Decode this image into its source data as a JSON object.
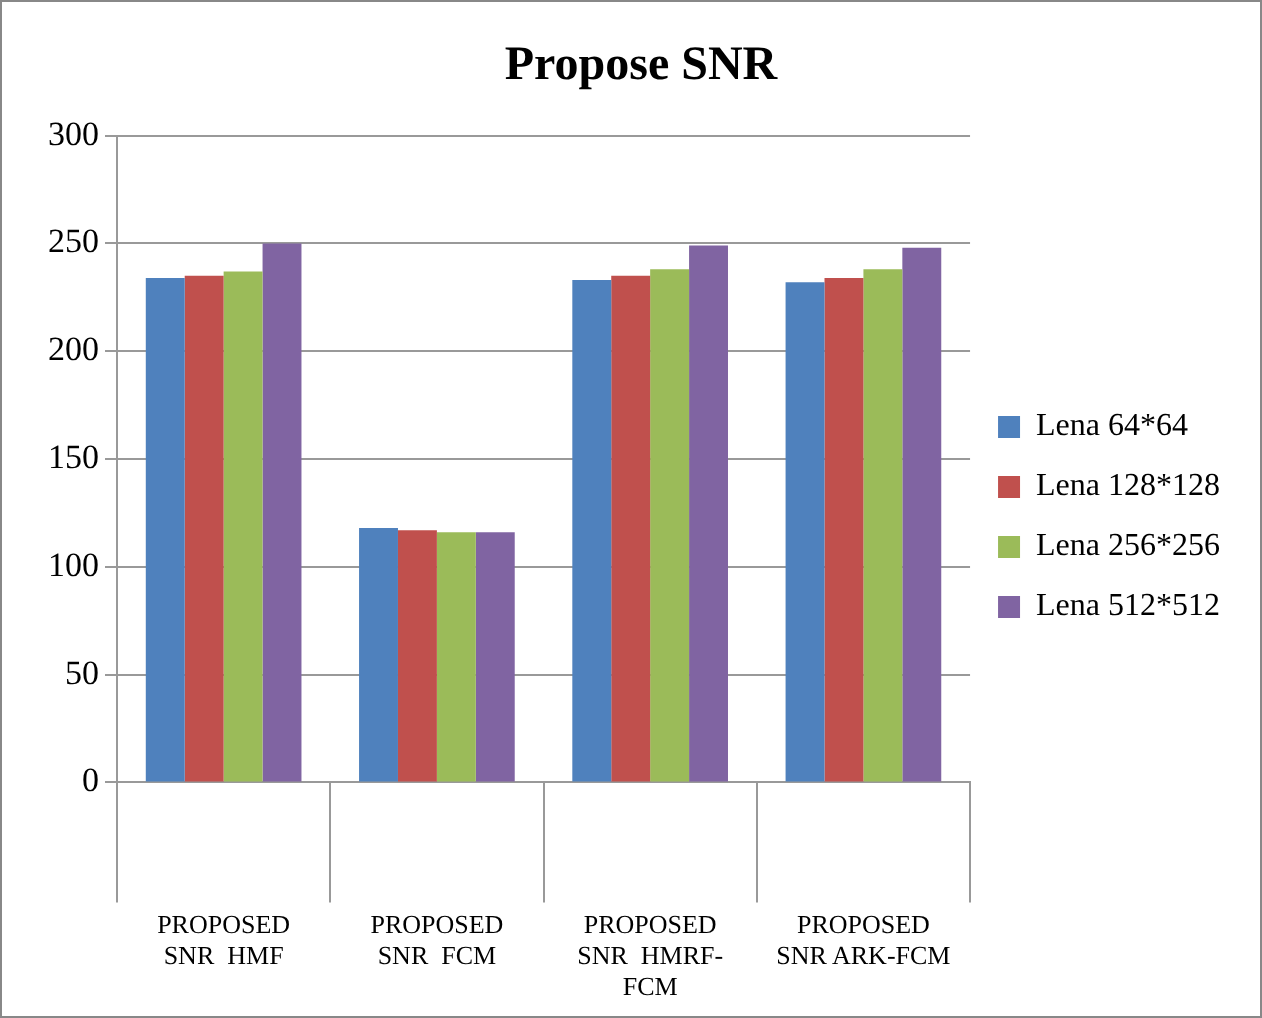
{
  "chart_data": {
    "type": "bar",
    "title": "Propose SNR",
    "categories": [
      "PROPOSED SNR  HMF",
      "PROPOSED SNR  FCM",
      "PROPOSED SNR  HMRF-FCM",
      "PROPOSED SNR ARK-FCM"
    ],
    "series": [
      {
        "name": "Lena 64*64",
        "color": "#4f81bd",
        "values": [
          234,
          118,
          233,
          232
        ]
      },
      {
        "name": "Lena 128*128",
        "color": "#c0504d",
        "values": [
          235,
          117,
          235,
          234
        ]
      },
      {
        "name": "Lena 256*256",
        "color": "#9bbb59",
        "values": [
          237,
          116,
          238,
          238
        ]
      },
      {
        "name": "Lena 512*512",
        "color": "#8064a2",
        "values": [
          250,
          116,
          249,
          248
        ]
      }
    ],
    "ylim": [
      0,
      300
    ],
    "yticks": [
      0,
      50,
      100,
      150,
      200,
      250,
      300
    ],
    "grid": "y",
    "legend": "right"
  }
}
